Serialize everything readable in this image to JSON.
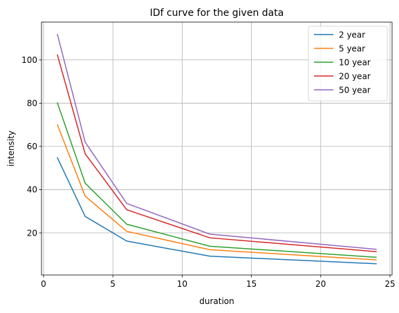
{
  "chart_data": {
    "type": "line",
    "title": "IDf curve for the given data",
    "xlabel": "duration",
    "ylabel": "intensity",
    "x": [
      1,
      3,
      6,
      12,
      24
    ],
    "xlim": [
      -0.15,
      25.15
    ],
    "ylim": [
      0.5,
      117.5
    ],
    "xticks": [
      0,
      5,
      10,
      15,
      20,
      25
    ],
    "yticks": [
      20,
      40,
      60,
      80,
      100
    ],
    "grid": true,
    "legend_position": "top-right",
    "series": [
      {
        "name": "2 year",
        "color": "#1f77b4",
        "values": [
          54.7,
          27.6,
          16.2,
          9.2,
          5.7
        ]
      },
      {
        "name": "5 year",
        "color": "#ff7f0e",
        "values": [
          70.0,
          37.0,
          20.7,
          12.2,
          7.5
        ]
      },
      {
        "name": "10 year",
        "color": "#2ca02c",
        "values": [
          80.1,
          43.0,
          24.0,
          13.8,
          8.7
        ]
      },
      {
        "name": "20 year",
        "color": "#d62728",
        "values": [
          102.3,
          56.6,
          30.7,
          17.7,
          11.3
        ]
      },
      {
        "name": "50 year",
        "color": "#9467bd",
        "values": [
          111.8,
          62.0,
          33.6,
          19.4,
          12.4
        ]
      }
    ]
  }
}
